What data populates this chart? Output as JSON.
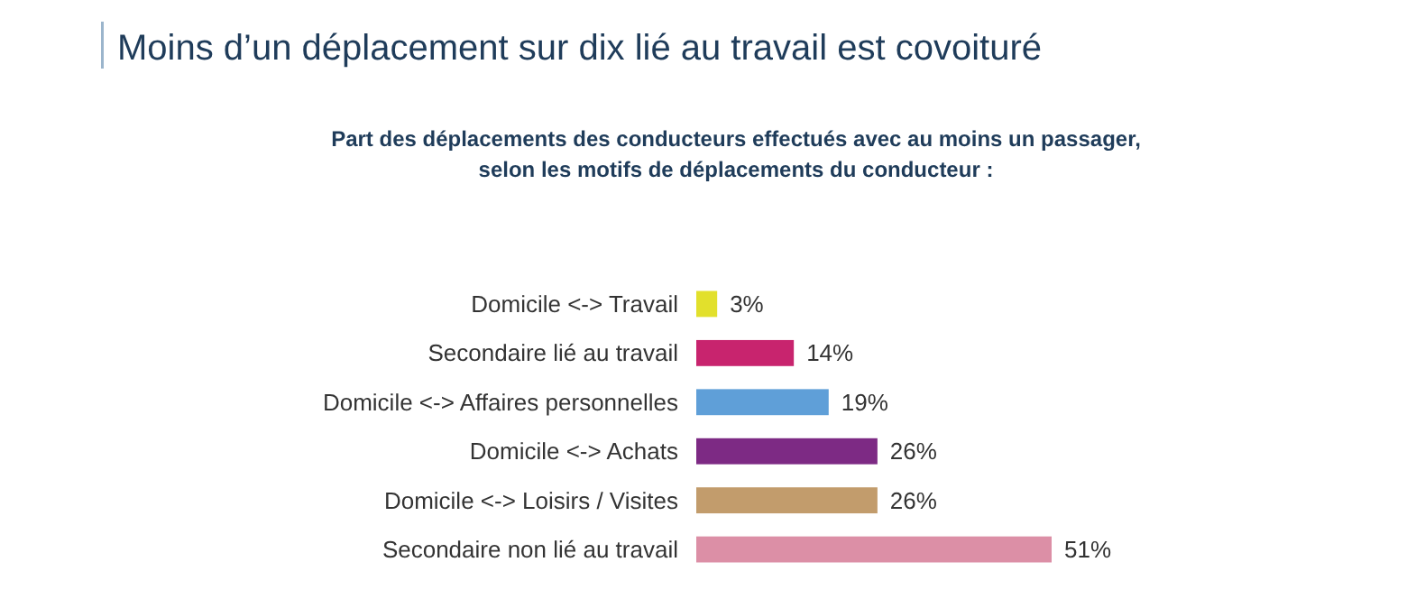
{
  "chart_data": {
    "type": "bar",
    "orientation": "horizontal",
    "title": "Moins d’un déplacement sur dix lié au travail est covoituré",
    "subtitle": "Part des déplacements des conducteurs effectués avec au moins un passager, selon les motifs de déplacements du conducteur :",
    "categories": [
      "Domicile <-> Travail",
      "Secondaire lié au travail",
      "Domicile <-> Affaires personnelles",
      "Domicile <-> Achats",
      "Domicile <-> Loisirs / Visites",
      "Secondaire non lié au travail"
    ],
    "values": [
      3,
      14,
      19,
      26,
      26,
      51
    ],
    "value_labels": [
      "3%",
      "14%",
      "19%",
      "26%",
      "26%",
      "51%"
    ],
    "colors": [
      "#e2e02c",
      "#c8246e",
      "#5f9fd8",
      "#7d2a84",
      "#c29c6c",
      "#dc8fa6"
    ]
  }
}
